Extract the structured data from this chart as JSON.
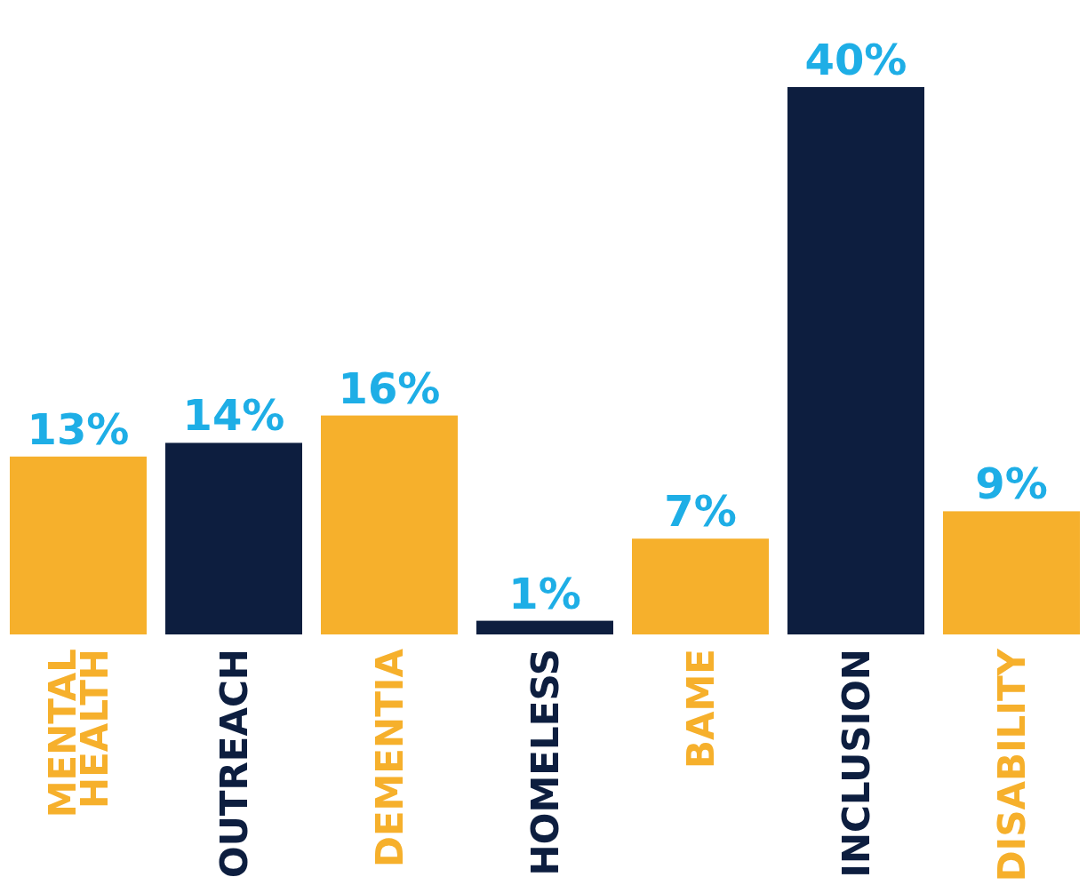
{
  "chart_data": {
    "type": "bar",
    "categories": [
      "MENTAL HEALTH",
      "OUTREACH",
      "DEMENTIA",
      "HOMELESS",
      "BAME",
      "INCLUSION",
      "DISABILITY"
    ],
    "values": [
      13,
      14,
      16,
      1,
      7,
      40,
      9
    ],
    "colors": [
      "#f6b02c",
      "#0d1e3f",
      "#f6b02c",
      "#0d1e3f",
      "#f6b02c",
      "#0d1e3f",
      "#f6b02c"
    ],
    "value_labels": [
      "13%",
      "14%",
      "16%",
      "1%",
      "7%",
      "40%",
      "9%"
    ]
  }
}
